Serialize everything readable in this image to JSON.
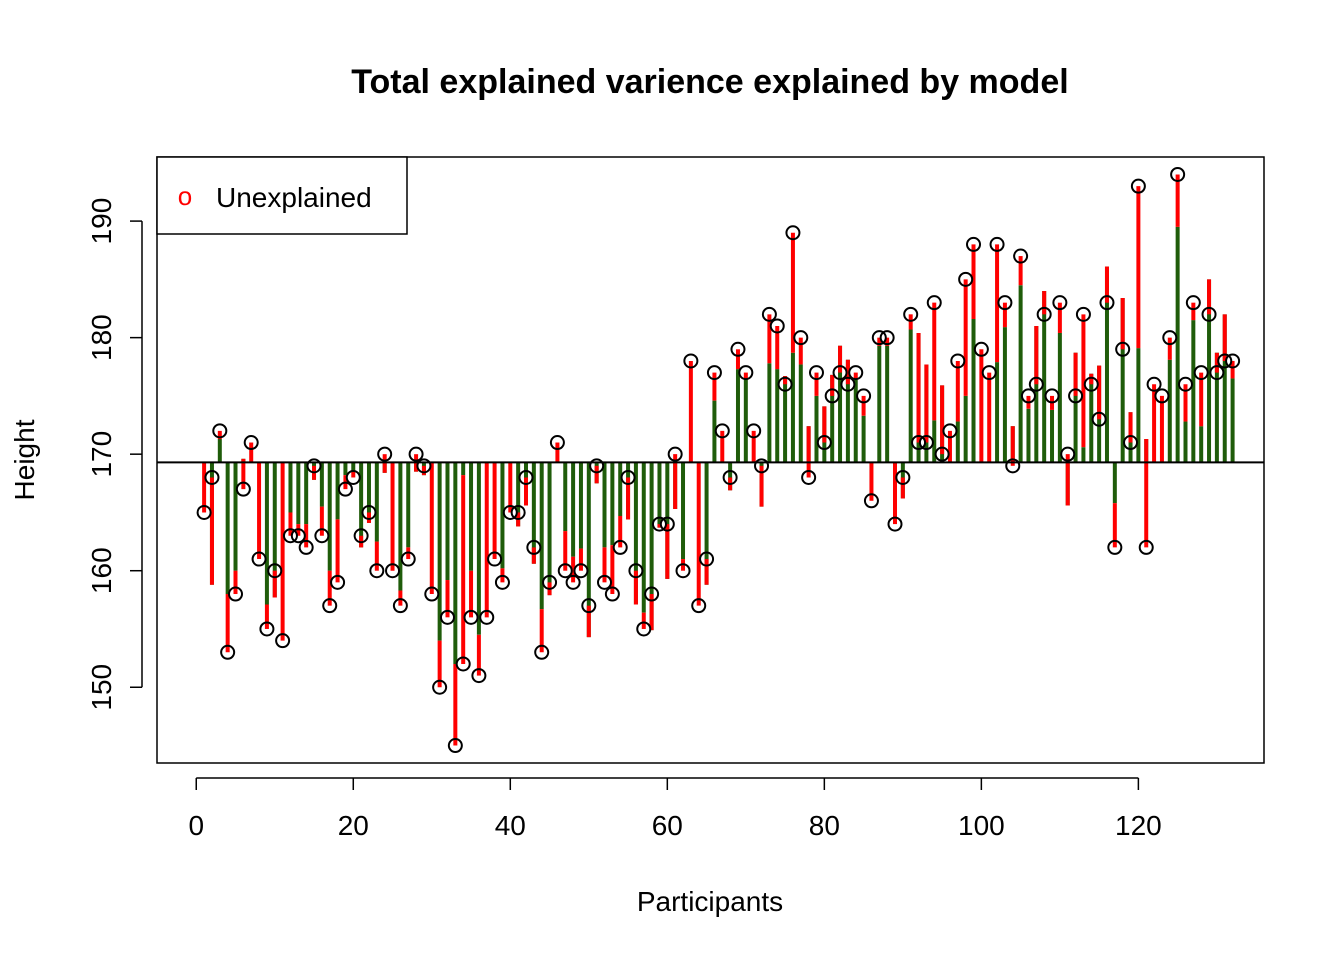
{
  "chart_data": {
    "type": "lollipop-residual",
    "title": "Total explained varience explained by model",
    "xlabel": "Participants",
    "ylabel": "Height",
    "xlim": [
      -5,
      136
    ],
    "ylim": [
      143.5,
      195.5
    ],
    "x_ticks": [
      0,
      20,
      40,
      60,
      80,
      100,
      120
    ],
    "y_ticks": [
      150,
      160,
      170,
      180,
      190
    ],
    "mean_line": 169.3,
    "legend": {
      "label": "Unexplained",
      "symbol": "o",
      "position": "top-left"
    },
    "colors": {
      "explained": "#1f5c0a",
      "unexplained": "#ff0000",
      "points": "#000000",
      "mean_line": "#000000"
    },
    "heights": [
      165,
      168,
      172,
      153,
      158,
      167,
      171,
      161,
      155,
      160,
      154,
      163,
      163,
      162,
      169,
      163,
      157,
      159,
      167,
      168,
      163,
      165,
      160,
      170,
      160,
      157,
      161,
      170,
      169,
      158,
      150,
      156,
      145,
      152,
      156,
      151,
      156,
      161,
      159,
      165,
      165,
      168,
      162,
      153,
      159,
      171,
      160,
      159,
      160,
      157,
      169,
      159,
      158,
      162,
      168,
      160,
      155,
      158,
      164,
      164,
      170,
      160,
      178,
      157,
      161,
      177,
      172,
      168,
      179,
      177,
      172,
      169,
      182,
      181,
      176,
      189,
      180,
      168,
      177,
      171,
      175,
      177,
      176,
      177,
      175,
      166,
      180,
      180,
      164,
      168,
      182,
      171,
      171,
      183,
      170,
      172,
      178,
      185,
      188,
      179,
      177,
      188,
      183,
      169,
      187,
      175,
      176,
      182,
      175,
      183,
      170,
      175,
      182,
      176,
      173,
      183,
      162,
      179,
      171,
      193,
      162,
      176,
      175,
      180,
      194,
      176,
      183,
      177,
      182,
      177,
      178,
      178
    ],
    "fitted": [
      169.3,
      158.8,
      171.3,
      158.0,
      160.0,
      169.6,
      169.3,
      169.3,
      157.1,
      157.7,
      169.3,
      165.0,
      164.0,
      164.0,
      167.8,
      165.5,
      160.0,
      164.4,
      168.2,
      168.6,
      162.0,
      164.1,
      162.5,
      168.4,
      169.3,
      158.3,
      162.0,
      168.5,
      168.2,
      169.3,
      154.0,
      159.2,
      152.0,
      168.2,
      160.0,
      154.5,
      169.3,
      169.3,
      160.2,
      169.3,
      163.8,
      165.6,
      160.6,
      156.7,
      157.9,
      169.3,
      163.4,
      161.2,
      161.9,
      154.3,
      167.5,
      162.0,
      162.2,
      164.7,
      164.4,
      157.1,
      156.4,
      154.9,
      163.7,
      159.3,
      165.3,
      161.0,
      169.3,
      169.3,
      158.8,
      174.6,
      169.3,
      166.9,
      177.3,
      176.5,
      169.3,
      165.5,
      177.8,
      177.3,
      176.7,
      178.7,
      177.7,
      172.4,
      175.0,
      174.1,
      176.8,
      179.3,
      178.1,
      176.4,
      173.3,
      169.3,
      179.3,
      179.3,
      169.3,
      166.2,
      180.7,
      180.4,
      177.7,
      172.9,
      175.9,
      169.3,
      172.8,
      175.0,
      181.6,
      169.3,
      169.3,
      177.9,
      180.9,
      172.4,
      184.5,
      173.9,
      181.0,
      184.0,
      173.8,
      180.4,
      165.6,
      178.7,
      170.6,
      176.9,
      177.6,
      186.1,
      165.8,
      183.4,
      173.6,
      179.1,
      171.3,
      169.3,
      169.3,
      178.1,
      189.5,
      172.8,
      181.5,
      172.4,
      185.0,
      178.7,
      182.0,
      176.5
    ]
  }
}
